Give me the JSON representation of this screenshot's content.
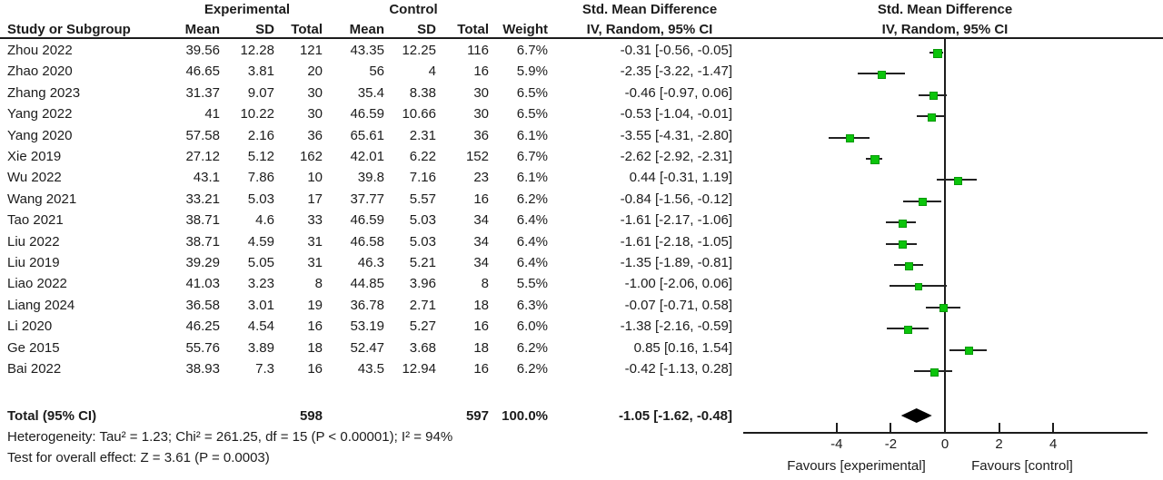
{
  "chart_data": {
    "type": "forest",
    "effect_measure": "Std. Mean Difference",
    "model": "IV, Random, 95% CI",
    "header": {
      "study_col": "Study or Subgroup",
      "group_experimental": "Experimental",
      "group_control": "Control",
      "smd_text_col": "Std. Mean Difference",
      "smd_plot_col": "Std. Mean Difference",
      "mean": "Mean",
      "sd": "SD",
      "total": "Total",
      "weight": "Weight",
      "ci_model": "IV, Random, 95% CI"
    },
    "studies": [
      {
        "name": "Zhou 2022",
        "exp_mean": "39.56",
        "exp_sd": "12.28",
        "exp_total": "121",
        "ctl_mean": "43.35",
        "ctl_sd": "12.25",
        "ctl_total": "116",
        "weight": "6.7%",
        "ci_text": "-0.31 [-0.56, -0.05]",
        "est": -0.31,
        "lo": -0.56,
        "hi": -0.05,
        "weight_pct": 6.7
      },
      {
        "name": "Zhao 2020",
        "exp_mean": "46.65",
        "exp_sd": "3.81",
        "exp_total": "20",
        "ctl_mean": "56",
        "ctl_sd": "4",
        "ctl_total": "16",
        "weight": "5.9%",
        "ci_text": "-2.35 [-3.22, -1.47]",
        "est": -2.35,
        "lo": -3.22,
        "hi": -1.47,
        "weight_pct": 5.9
      },
      {
        "name": "Zhang 2023",
        "exp_mean": "31.37",
        "exp_sd": "9.07",
        "exp_total": "30",
        "ctl_mean": "35.4",
        "ctl_sd": "8.38",
        "ctl_total": "30",
        "weight": "6.5%",
        "ci_text": "-0.46 [-0.97, 0.06]",
        "est": -0.46,
        "lo": -0.97,
        "hi": 0.06,
        "weight_pct": 6.5
      },
      {
        "name": "Yang 2022",
        "exp_mean": "41",
        "exp_sd": "10.22",
        "exp_total": "30",
        "ctl_mean": "46.59",
        "ctl_sd": "10.66",
        "ctl_total": "30",
        "weight": "6.5%",
        "ci_text": "-0.53 [-1.04, -0.01]",
        "est": -0.53,
        "lo": -1.04,
        "hi": -0.01,
        "weight_pct": 6.5
      },
      {
        "name": "Yang 2020",
        "exp_mean": "57.58",
        "exp_sd": "2.16",
        "exp_total": "36",
        "ctl_mean": "65.61",
        "ctl_sd": "2.31",
        "ctl_total": "36",
        "weight": "6.1%",
        "ci_text": "-3.55 [-4.31, -2.80]",
        "est": -3.55,
        "lo": -4.31,
        "hi": -2.8,
        "weight_pct": 6.1
      },
      {
        "name": "Xie 2019",
        "exp_mean": "27.12",
        "exp_sd": "5.12",
        "exp_total": "162",
        "ctl_mean": "42.01",
        "ctl_sd": "6.22",
        "ctl_total": "152",
        "weight": "6.7%",
        "ci_text": "-2.62 [-2.92, -2.31]",
        "est": -2.62,
        "lo": -2.92,
        "hi": -2.31,
        "weight_pct": 6.7
      },
      {
        "name": "Wu 2022",
        "exp_mean": "43.1",
        "exp_sd": "7.86",
        "exp_total": "10",
        "ctl_mean": "39.8",
        "ctl_sd": "7.16",
        "ctl_total": "23",
        "weight": "6.1%",
        "ci_text": "0.44 [-0.31, 1.19]",
        "est": 0.44,
        "lo": -0.31,
        "hi": 1.19,
        "weight_pct": 6.1
      },
      {
        "name": "Wang 2021",
        "exp_mean": "33.21",
        "exp_sd": "5.03",
        "exp_total": "17",
        "ctl_mean": "37.77",
        "ctl_sd": "5.57",
        "ctl_total": "16",
        "weight": "6.2%",
        "ci_text": "-0.84 [-1.56, -0.12]",
        "est": -0.84,
        "lo": -1.56,
        "hi": -0.12,
        "weight_pct": 6.2
      },
      {
        "name": "Tao 2021",
        "exp_mean": "38.71",
        "exp_sd": "4.6",
        "exp_total": "33",
        "ctl_mean": "46.59",
        "ctl_sd": "5.03",
        "ctl_total": "34",
        "weight": "6.4%",
        "ci_text": "-1.61 [-2.17, -1.06]",
        "est": -1.61,
        "lo": -2.17,
        "hi": -1.06,
        "weight_pct": 6.4
      },
      {
        "name": "Liu 2022",
        "exp_mean": "38.71",
        "exp_sd": "4.59",
        "exp_total": "31",
        "ctl_mean": "46.58",
        "ctl_sd": "5.03",
        "ctl_total": "34",
        "weight": "6.4%",
        "ci_text": "-1.61 [-2.18, -1.05]",
        "est": -1.61,
        "lo": -2.18,
        "hi": -1.05,
        "weight_pct": 6.4
      },
      {
        "name": "Liu 2019",
        "exp_mean": "39.29",
        "exp_sd": "5.05",
        "exp_total": "31",
        "ctl_mean": "46.3",
        "ctl_sd": "5.21",
        "ctl_total": "34",
        "weight": "6.4%",
        "ci_text": "-1.35 [-1.89, -0.81]",
        "est": -1.35,
        "lo": -1.89,
        "hi": -0.81,
        "weight_pct": 6.4
      },
      {
        "name": "Liao 2022",
        "exp_mean": "41.03",
        "exp_sd": "3.23",
        "exp_total": "8",
        "ctl_mean": "44.85",
        "ctl_sd": "3.96",
        "ctl_total": "8",
        "weight": "5.5%",
        "ci_text": "-1.00 [-2.06, 0.06]",
        "est": -1.0,
        "lo": -2.06,
        "hi": 0.06,
        "weight_pct": 5.5
      },
      {
        "name": "Liang 2024",
        "exp_mean": "36.58",
        "exp_sd": "3.01",
        "exp_total": "19",
        "ctl_mean": "36.78",
        "ctl_sd": "2.71",
        "ctl_total": "18",
        "weight": "6.3%",
        "ci_text": "-0.07 [-0.71, 0.58]",
        "est": -0.07,
        "lo": -0.71,
        "hi": 0.58,
        "weight_pct": 6.3
      },
      {
        "name": "Li 2020",
        "exp_mean": "46.25",
        "exp_sd": "4.54",
        "exp_total": "16",
        "ctl_mean": "53.19",
        "ctl_sd": "5.27",
        "ctl_total": "16",
        "weight": "6.0%",
        "ci_text": "-1.38 [-2.16, -0.59]",
        "est": -1.38,
        "lo": -2.16,
        "hi": -0.59,
        "weight_pct": 6.0
      },
      {
        "name": "Ge 2015",
        "exp_mean": "55.76",
        "exp_sd": "3.89",
        "exp_total": "18",
        "ctl_mean": "52.47",
        "ctl_sd": "3.68",
        "ctl_total": "18",
        "weight": "6.2%",
        "ci_text": "0.85 [0.16, 1.54]",
        "est": 0.85,
        "lo": 0.16,
        "hi": 1.54,
        "weight_pct": 6.2
      },
      {
        "name": "Bai 2022",
        "exp_mean": "38.93",
        "exp_sd": "7.3",
        "exp_total": "16",
        "ctl_mean": "43.5",
        "ctl_sd": "12.94",
        "ctl_total": "16",
        "weight": "6.2%",
        "ci_text": "-0.42 [-1.13, 0.28]",
        "est": -0.42,
        "lo": -1.13,
        "hi": 0.28,
        "weight_pct": 6.2
      }
    ],
    "total": {
      "label": "Total (95% CI)",
      "exp_total": "598",
      "ctl_total": "597",
      "weight": "100.0%",
      "ci_text": "-1.05 [-1.62, -0.48]",
      "est": -1.05,
      "lo": -1.62,
      "hi": -0.48
    },
    "footer": {
      "heterogeneity": "Heterogeneity: Tau² = 1.23; Chi² = 261.25, df = 15 (P < 0.00001); I² = 94%",
      "overall_effect": "Test for overall effect: Z = 3.61 (P = 0.0003)"
    },
    "axis": {
      "ticks": [
        -4,
        -2,
        0,
        2,
        4
      ],
      "xlim_visual": [
        -7.5,
        7.4
      ],
      "favours_left": "Favours [experimental]",
      "favours_right": "Favours [control]"
    },
    "colors": {
      "marker_green": "#0bc40b",
      "diamond_black": "#000000",
      "line_black": "#1c1c1c"
    }
  }
}
